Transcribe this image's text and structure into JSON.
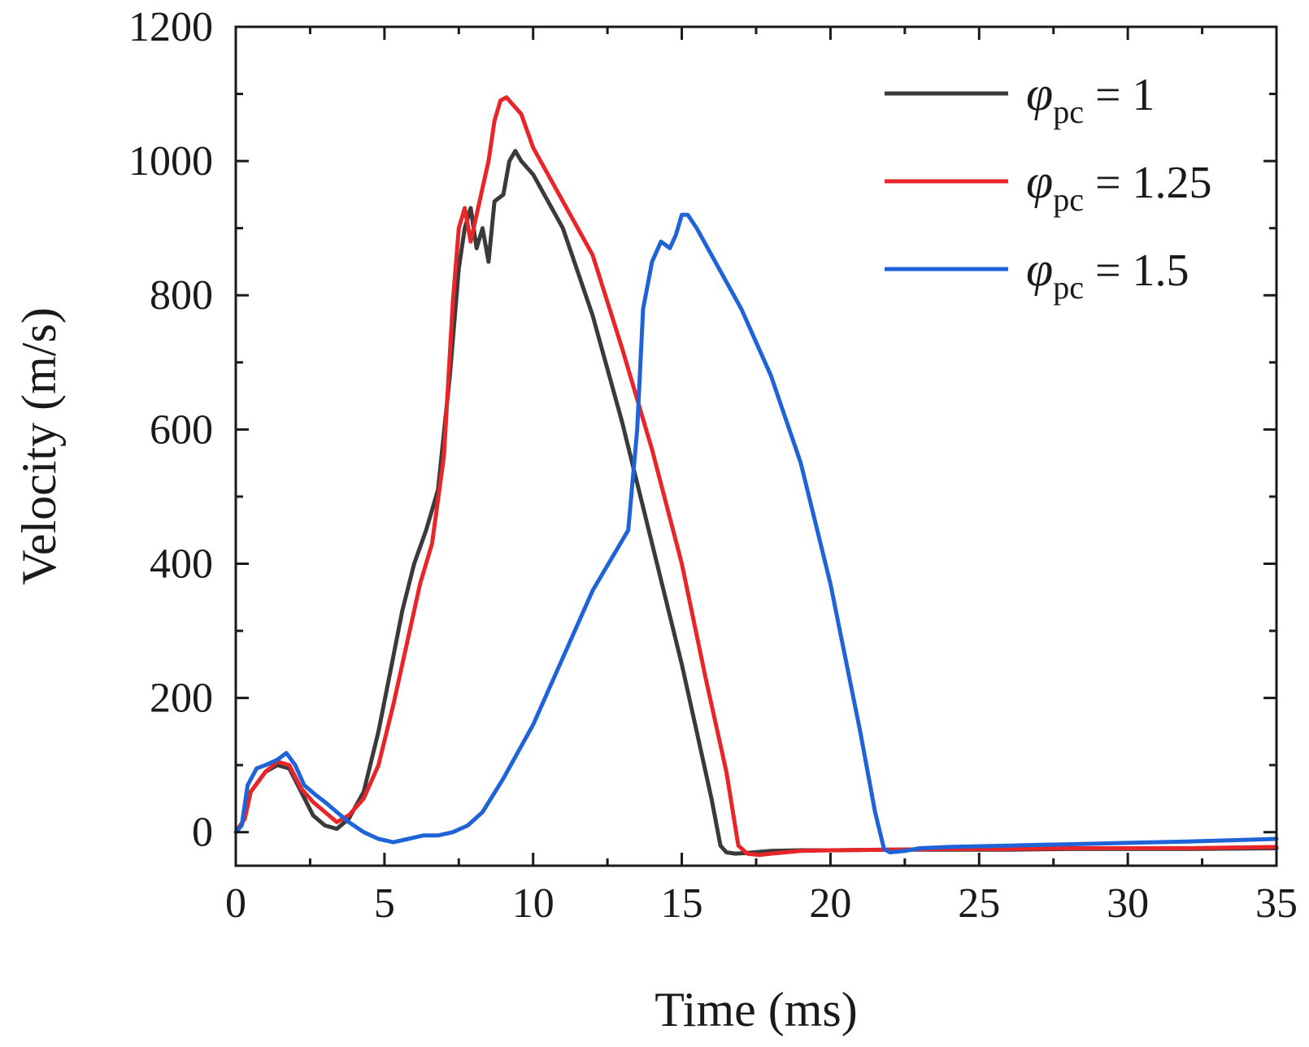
{
  "chart_data": {
    "type": "line",
    "title": "",
    "xlabel": "Time (ms)",
    "ylabel": "Velocity (m/s)",
    "xlim": [
      0,
      35
    ],
    "ylim": [
      -50,
      1200
    ],
    "xticks": [
      0,
      5,
      10,
      15,
      20,
      25,
      30,
      35
    ],
    "yticks": [
      0,
      200,
      400,
      600,
      800,
      1000,
      1200
    ],
    "grid": false,
    "legend_position": "top-right",
    "series": [
      {
        "name": "φpc = 1",
        "symbol": "φ",
        "subscript": "pc",
        "value_text": "= 1",
        "color": "#3a3a3a",
        "x": [
          0,
          0.3,
          0.5,
          1.0,
          1.4,
          1.8,
          2.2,
          2.6,
          3.0,
          3.4,
          3.8,
          4.3,
          4.8,
          5.2,
          5.6,
          6.0,
          6.4,
          6.8,
          7.2,
          7.5,
          7.7,
          7.9,
          8.1,
          8.3,
          8.5,
          8.7,
          9.0,
          9.2,
          9.4,
          9.6,
          10.0,
          11.0,
          12.0,
          13.0,
          14.0,
          15.0,
          15.5,
          16.0,
          16.3,
          16.5,
          16.8,
          17.2,
          18.0,
          19.0,
          20.0,
          22.0,
          24.0,
          26.0,
          28.0,
          30.0,
          32.0,
          35.0
        ],
        "y": [
          0,
          20,
          60,
          90,
          100,
          95,
          60,
          25,
          10,
          5,
          20,
          60,
          150,
          240,
          330,
          400,
          450,
          510,
          680,
          840,
          900,
          930,
          870,
          900,
          850,
          940,
          950,
          1000,
          1015,
          1000,
          980,
          900,
          770,
          610,
          430,
          250,
          150,
          50,
          -20,
          -30,
          -32,
          -31,
          -28,
          -27,
          -27,
          -26,
          -26,
          -26,
          -25,
          -25,
          -25,
          -24
        ]
      },
      {
        "name": "φpc = 1.25",
        "symbol": "φ",
        "subscript": "pc",
        "value_text": "= 1.25",
        "color": "#e8262a",
        "x": [
          0,
          0.3,
          0.5,
          1.0,
          1.4,
          1.8,
          2.2,
          2.6,
          3.0,
          3.4,
          3.8,
          4.3,
          4.8,
          5.3,
          5.8,
          6.2,
          6.6,
          7.0,
          7.3,
          7.5,
          7.7,
          7.9,
          8.1,
          8.3,
          8.5,
          8.7,
          8.9,
          9.1,
          9.3,
          9.6,
          10.0,
          11.0,
          12.0,
          13.0,
          14.0,
          15.0,
          15.8,
          16.5,
          16.9,
          17.2,
          17.6,
          18.0,
          19.0,
          20.0,
          22.0,
          24.0,
          26.0,
          28.0,
          30.0,
          32.0,
          35.0
        ],
        "y": [
          0,
          20,
          60,
          90,
          105,
          100,
          65,
          45,
          30,
          15,
          25,
          50,
          100,
          190,
          290,
          370,
          430,
          560,
          790,
          900,
          930,
          880,
          920,
          960,
          1000,
          1060,
          1090,
          1095,
          1085,
          1070,
          1020,
          940,
          860,
          720,
          570,
          400,
          230,
          90,
          -20,
          -32,
          -34,
          -32,
          -28,
          -27,
          -26,
          -25,
          -25,
          -24,
          -24,
          -24,
          -22
        ]
      },
      {
        "name": "φpc = 1.5",
        "symbol": "φ",
        "subscript": "pc",
        "value_text": "= 1.5",
        "color": "#1f63d8",
        "x": [
          0,
          0.2,
          0.4,
          0.7,
          1.0,
          1.4,
          1.7,
          2.0,
          2.3,
          2.7,
          3.0,
          3.4,
          3.8,
          4.3,
          4.8,
          5.3,
          5.8,
          6.3,
          6.8,
          7.3,
          7.8,
          8.3,
          9.0,
          10.0,
          11.0,
          12.0,
          12.8,
          13.2,
          13.5,
          13.7,
          14.0,
          14.3,
          14.6,
          14.8,
          15.0,
          15.2,
          15.5,
          16.0,
          17.0,
          18.0,
          19.0,
          20.0,
          21.0,
          21.5,
          21.8,
          22.0,
          22.5,
          23.0,
          24.0,
          26.0,
          28.0,
          30.0,
          32.0,
          35.0
        ],
        "y": [
          0,
          10,
          70,
          95,
          100,
          108,
          118,
          100,
          70,
          55,
          45,
          30,
          15,
          0,
          -10,
          -15,
          -10,
          -5,
          -5,
          0,
          10,
          30,
          80,
          160,
          260,
          360,
          420,
          450,
          600,
          780,
          850,
          880,
          870,
          890,
          920,
          920,
          900,
          860,
          780,
          680,
          550,
          370,
          150,
          30,
          -25,
          -30,
          -28,
          -24,
          -22,
          -20,
          -18,
          -16,
          -14,
          -10
        ]
      }
    ]
  }
}
